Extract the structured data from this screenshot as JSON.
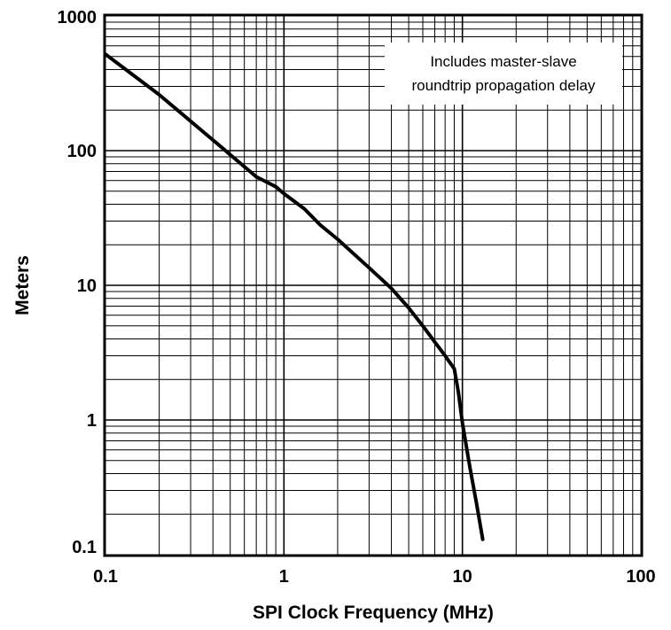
{
  "chart_data": {
    "type": "line",
    "title": "",
    "xlabel": "SPI Clock Frequency (MHz)",
    "ylabel": "Meters",
    "x_scale": "log",
    "y_scale": "log",
    "xlim": [
      0.1,
      100
    ],
    "ylim": [
      0.1,
      1000
    ],
    "x_ticks": [
      {
        "value": 0.1,
        "label": "0.1"
      },
      {
        "value": 1,
        "label": "1"
      },
      {
        "value": 10,
        "label": "10"
      },
      {
        "value": 100,
        "label": "100"
      }
    ],
    "y_ticks": [
      {
        "value": 0.1,
        "label": "0.1"
      },
      {
        "value": 1,
        "label": "1"
      },
      {
        "value": 10,
        "label": "10"
      },
      {
        "value": 100,
        "label": "100"
      },
      {
        "value": 1000,
        "label": "1000"
      }
    ],
    "grid": true,
    "annotation": {
      "lines": [
        "Includes master-slave",
        "roundtrip propagation delay"
      ],
      "placement": "top-right"
    },
    "series": [
      {
        "color": "#000000",
        "x": [
          0.1,
          0.2,
          0.4,
          0.7,
          0.9,
          1.0,
          1.3,
          1.6,
          2.0,
          3.0,
          4.0,
          5.0,
          6.0,
          7.0,
          8.0,
          9.0,
          9.5,
          10.0,
          11.0,
          12.0,
          13.0
        ],
        "y": [
          520,
          260,
          120,
          64,
          54,
          48,
          37,
          28,
          22,
          13.5,
          9.5,
          6.8,
          5.0,
          3.8,
          3.0,
          2.4,
          1.6,
          0.95,
          0.45,
          0.24,
          0.13
        ]
      }
    ]
  }
}
